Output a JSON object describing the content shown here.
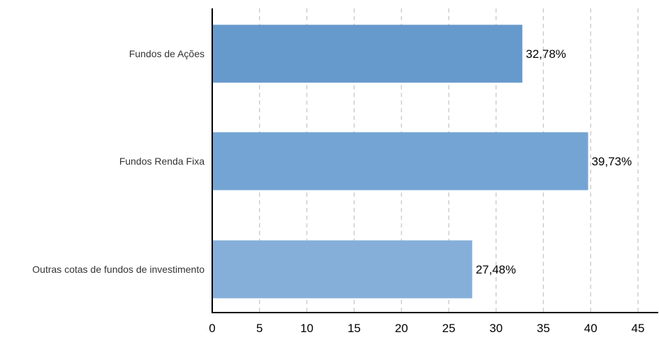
{
  "chart_data": {
    "type": "bar",
    "orientation": "horizontal",
    "categories": [
      "Fundos de Ações",
      "Fundos Renda Fixa",
      "Outras cotas de fundos de investimento"
    ],
    "values": [
      32.78,
      39.73,
      27.48
    ],
    "data_labels": [
      "32,78%",
      "39,73%",
      "27,48%"
    ],
    "xlim": [
      0,
      47
    ],
    "xticks": [
      0,
      5,
      10,
      15,
      20,
      25,
      30,
      35,
      40,
      45
    ],
    "grid": true,
    "legend": "none",
    "colors": [
      "#6699cc",
      "#74a4d3",
      "#85afd9"
    ]
  }
}
